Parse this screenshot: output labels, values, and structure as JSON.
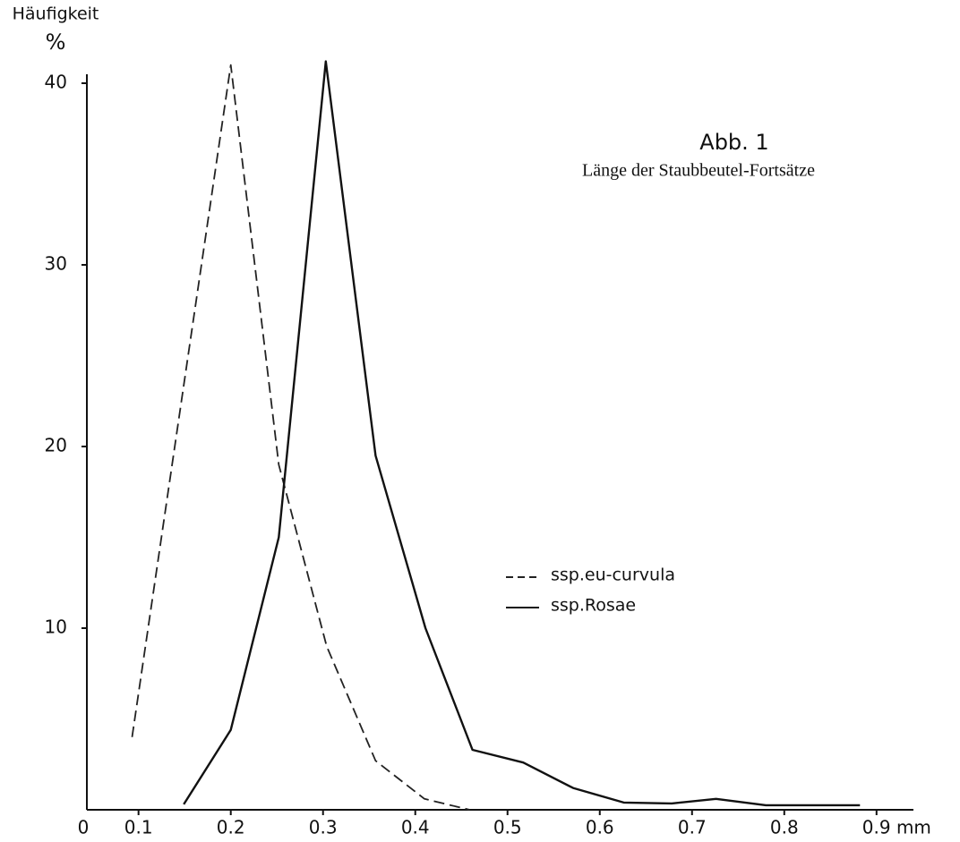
{
  "chart_data": {
    "type": "line",
    "title": "Abb. 1",
    "subtitle": "Länge der Staubbeutel-Fortsätze",
    "y_label": "Häufigkeit",
    "y_unit": "%",
    "x_origin_label": "0",
    "xlim": [
      0.044,
      0.94
    ],
    "ylim": [
      0,
      40
    ],
    "xticks": [
      0.1,
      0.2,
      0.3,
      0.4,
      0.5,
      0.6,
      0.7,
      0.8,
      {
        "value": 0.9,
        "label": "0.9 mm"
      }
    ],
    "yticks": [
      10,
      20,
      30,
      40
    ],
    "series": [
      {
        "name": "ssp.eu-curvula",
        "color": "#222",
        "dash": true,
        "x": [
          0.093,
          0.2,
          0.252,
          0.304,
          0.357,
          0.41,
          0.459
        ],
        "values": [
          4,
          41,
          19,
          9,
          2.7,
          0.6,
          0
        ]
      },
      {
        "name": "ssp.Rosae",
        "color": "#111",
        "dash": false,
        "x": [
          0.149,
          0.2,
          0.252,
          0.303,
          0.357,
          0.411,
          0.462,
          0.517,
          0.571,
          0.626,
          0.678,
          0.726,
          0.78,
          0.83,
          0.882
        ],
        "values": [
          0.3,
          4.4,
          15,
          41.2,
          19.5,
          10,
          3.3,
          2.6,
          1.2,
          0.4,
          0.35,
          0.6,
          0.25,
          0.25,
          0.25
        ]
      }
    ]
  }
}
